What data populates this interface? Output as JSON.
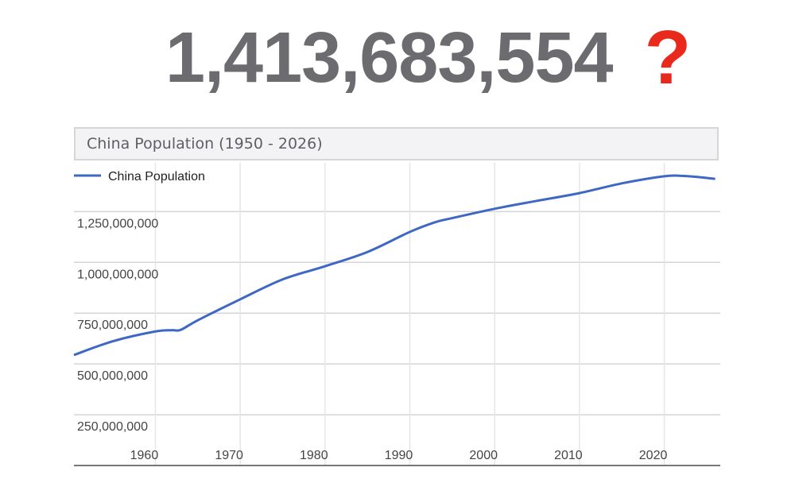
{
  "headline": {
    "number": "1,413,683,554",
    "mark": "?",
    "mark_color": "#e8291c"
  },
  "chart_data": {
    "type": "line",
    "title": "China Population (1950 - 2026)",
    "xlabel": "",
    "ylabel": "",
    "xlim": [
      1950.4,
      2026.6
    ],
    "ylim": [
      0,
      1490000000
    ],
    "grid": true,
    "legend_position": "top-left",
    "x_ticks": [
      1960,
      1970,
      1980,
      1990,
      2000,
      2010,
      2020
    ],
    "y_ticks": [
      250000000,
      500000000,
      750000000,
      1000000000,
      1250000000
    ],
    "y_tick_labels": [
      "250,000,000",
      "500,000,000",
      "750,000,000",
      "1,000,000,000",
      "1,250,000,000"
    ],
    "series": [
      {
        "name": "China Population",
        "color": "#3f67c4",
        "x": [
          1950,
          1955,
          1960,
          1962,
          1963,
          1965,
          1970,
          1975,
          1980,
          1985,
          1990,
          1993,
          1995,
          2000,
          2005,
          2010,
          2015,
          2020,
          2022,
          2024,
          2026
        ],
        "values": [
          544000000,
          612000000,
          660000000,
          666000000,
          668000000,
          715000000,
          818000000,
          916000000,
          981000000,
          1051000000,
          1150000000,
          1198000000,
          1218000000,
          1264000000,
          1303000000,
          1341000000,
          1389000000,
          1424000000,
          1426000000,
          1420000000,
          1411000000
        ]
      }
    ]
  }
}
